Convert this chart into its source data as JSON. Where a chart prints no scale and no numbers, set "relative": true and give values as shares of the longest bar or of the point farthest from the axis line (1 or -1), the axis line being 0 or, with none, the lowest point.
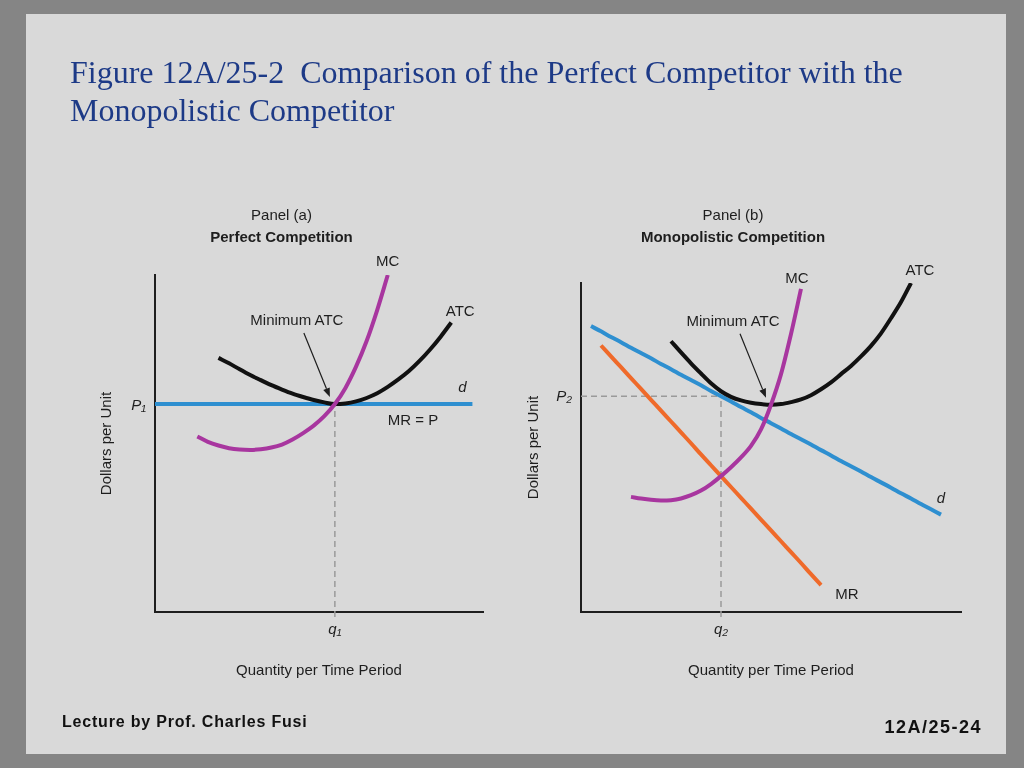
{
  "chart_data": [
    {
      "type": "line",
      "title": "Panel (a)",
      "subtitle": "Perfect Competition",
      "xlabel": "Quantity per Time Period",
      "ylabel": "Dollars per Unit",
      "relative": true,
      "categories": [
        null,
        null,
        null,
        null,
        null,
        null,
        null,
        null,
        null,
        null,
        null,
        null,
        null,
        null,
        null,
        null,
        null,
        null,
        null,
        null,
        null,
        null,
        null,
        null,
        null,
        null,
        null,
        null,
        null,
        null,
        null,
        null
      ],
      "series": [
        {
          "name": "MC",
          "color": "#a8369f",
          "values": [
            null,
            null,
            null,
            null,
            0.521,
            0.505,
            0.494,
            0.486,
            0.482,
            0.481,
            0.483,
            0.488,
            0.497,
            0.512,
            0.531,
            0.553,
            0.581,
            0.617,
            0.665,
            0.728,
            0.804,
            0.896,
            1,
            null,
            null,
            null,
            null,
            null,
            null,
            null,
            null,
            null
          ]
        },
        {
          "name": "ATC",
          "color": "#111111",
          "values": [
            null,
            null,
            null,
            null,
            null,
            null,
            0.754,
            0.738,
            0.72,
            0.703,
            0.688,
            0.673,
            0.66,
            0.648,
            0.638,
            0.629,
            0.622,
            0.617,
            0.619,
            0.625,
            0.635,
            0.649,
            0.668,
            0.69,
            0.715,
            0.745,
            0.779,
            0.817,
            0.859,
            null,
            null,
            null
          ]
        },
        {
          "name": "d",
          "color": "#2e8fd0",
          "values": [
            0.617,
            0.617,
            0.617,
            0.617,
            0.617,
            0.617,
            0.617,
            0.617,
            0.617,
            0.617,
            0.617,
            0.617,
            0.617,
            0.617,
            0.617,
            0.617,
            0.617,
            0.617,
            0.617,
            0.617,
            0.617,
            0.617,
            0.617,
            0.617,
            0.617,
            0.617,
            0.617,
            0.617,
            0.617,
            0.617,
            0.617,
            null
          ]
        }
      ],
      "ref_lines": [
        {
          "axis": "x",
          "value": "q₁",
          "color": "#9a9a9a",
          "line_style": "dashed"
        }
      ],
      "annotations": [
        "Figure 12A/25-2  Comparison of the Perfect Competitor with the Monopolistic Competitor",
        "Lecture by Prof. Charles Fusi",
        "Minimum ATC",
        {
          "text": "MR = P",
          "y": 0.617
        },
        "P₁"
      ]
    },
    {
      "type": "line",
      "title": "Panel (b)",
      "subtitle": "Monopolistic Competition",
      "xlabel": "Quantity per Time Period",
      "ylabel": "Dollars per Unit",
      "relative": true,
      "categories": [
        null,
        null,
        null,
        null,
        null,
        null,
        null,
        null,
        null,
        null,
        null,
        null,
        null,
        null,
        null,
        null,
        null,
        null,
        null,
        null,
        null,
        null,
        null,
        null,
        null,
        null,
        null,
        null,
        null,
        null,
        null,
        null,
        null,
        null,
        null,
        null,
        null,
        null,
        null
      ],
      "series": [
        {
          "name": "MC",
          "color": "#a8369f",
          "values": [
            null,
            null,
            null,
            null,
            null,
            0.35,
            0.345,
            0.341,
            0.339,
            0.34,
            0.345,
            0.355,
            0.369,
            0.389,
            0.413,
            0.44,
            0.47,
            0.505,
            0.555,
            0.63,
            0.723,
            0.845,
            0.982,
            null,
            null,
            null,
            null,
            null,
            null,
            null,
            null,
            null,
            null,
            null,
            null,
            null,
            null,
            null,
            null
          ]
        },
        {
          "name": "ATC",
          "color": "#111111",
          "values": [
            null,
            null,
            null,
            null,
            null,
            null,
            null,
            null,
            null,
            0.823,
            0.789,
            0.756,
            0.725,
            0.695,
            0.671,
            0.654,
            0.643,
            0.636,
            0.632,
            0.63,
            0.632,
            0.638,
            0.646,
            0.659,
            0.677,
            0.698,
            0.723,
            0.748,
            0.777,
            0.809,
            0.847,
            0.893,
            0.942,
            1,
            null,
            null,
            null,
            null,
            null
          ]
        },
        {
          "name": "d",
          "color": "#2e8fd0",
          "values": [
            null,
            0.869,
            0.853,
            0.836,
            0.82,
            0.803,
            0.787,
            0.771,
            0.754,
            0.738,
            0.721,
            0.705,
            0.689,
            0.672,
            0.656,
            0.64,
            0.623,
            0.607,
            0.59,
            0.574,
            0.558,
            0.541,
            0.525,
            0.509,
            0.492,
            0.476,
            0.459,
            0.443,
            0.427,
            0.41,
            0.394,
            0.378,
            0.361,
            0.345,
            0.328,
            0.312,
            0.296,
            null,
            null
          ]
        },
        {
          "name": "MR",
          "color": "#ef6a2a",
          "values": [
            null,
            null,
            0.81,
            0.777,
            0.744,
            0.711,
            0.678,
            0.645,
            0.612,
            0.579,
            0.546,
            0.513,
            0.479,
            0.446,
            0.413,
            0.38,
            0.347,
            0.314,
            0.281,
            0.248,
            0.215,
            0.182,
            0.149,
            0.115,
            0.082,
            null,
            null,
            null,
            null,
            null,
            null,
            null,
            null,
            null,
            null,
            null,
            null,
            null,
            null
          ]
        }
      ],
      "ref_lines": [
        {
          "axis": "y",
          "value": 0.656,
          "label": "P₂",
          "color": "#9a9a9a",
          "line_style": "dashed"
        },
        {
          "axis": "x",
          "value": "q₂",
          "color": "#9a9a9a",
          "line_style": "dashed"
        }
      ],
      "annotations": [
        "12A/25-24",
        "Minimum ATC"
      ]
    }
  ]
}
